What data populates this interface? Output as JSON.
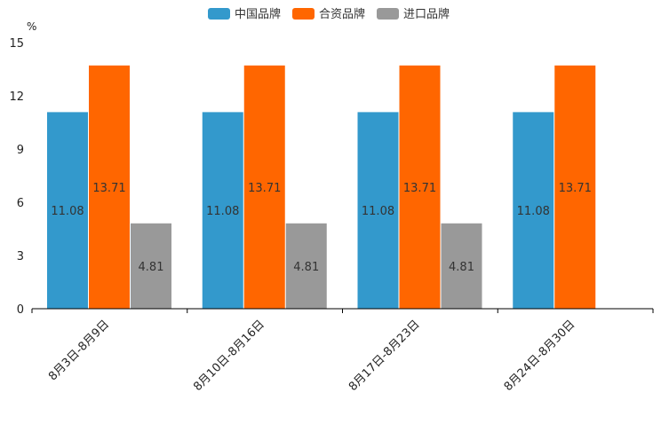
{
  "chart_data": {
    "type": "bar",
    "unit": "%",
    "categories": [
      "8月3日-8月9日",
      "8月10日-8月16日",
      "8月17日-8月23日",
      "8月24日-8月30日"
    ],
    "series": [
      {
        "name": "中国品牌",
        "color": "#3399cc",
        "values": [
          11.08,
          11.08,
          11.08,
          11.08
        ],
        "labels": [
          "11.08",
          "11.08",
          "11.08",
          "11.08"
        ]
      },
      {
        "name": "合资品牌",
        "color": "#ff6600",
        "values": [
          13.71,
          13.71,
          13.71,
          13.71
        ],
        "labels": [
          "13.71",
          "13.71",
          "13.71",
          "13.71"
        ]
      },
      {
        "name": "进口品牌",
        "color": "#999999",
        "values": [
          4.81,
          4.81,
          4.81,
          null
        ],
        "labels": [
          "4.81",
          "4.81",
          "4.81",
          ""
        ]
      }
    ],
    "ylim": [
      0,
      15
    ],
    "yticks": [
      "0",
      "3",
      "6",
      "9",
      "12",
      "15"
    ],
    "legend_position": "top-center"
  }
}
